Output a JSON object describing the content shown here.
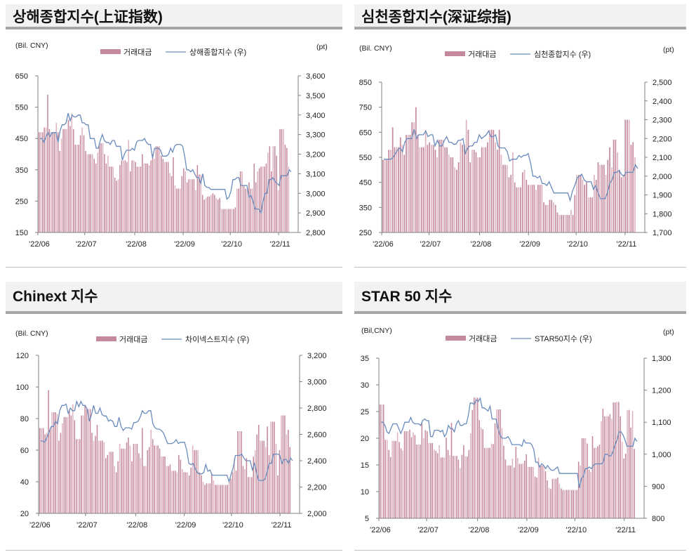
{
  "panels": [
    {
      "title": "상해종합지수(上证指数)"
    },
    {
      "title": "심천종합지수(深证综指)"
    },
    {
      "title": "Chinext 지수"
    },
    {
      "title": "STAR 50 지수"
    }
  ],
  "colors": {
    "bar": "#c4899b",
    "bar_light": "#dfb3c0",
    "line": "#6a8bbd",
    "axis": "#808080"
  },
  "chart_data": [
    {
      "type": "bar+line",
      "left_unit": "(Bil. CNY)",
      "right_unit": "(pt)",
      "legend": {
        "bar": "거래대금",
        "line": "상해종합지수 (우)"
      },
      "legend_placement": "top-center",
      "x_ticks": [
        "'22/06",
        "'22/07",
        "'22/08",
        "'22/09",
        "'22/10",
        "'22/11"
      ],
      "ylim_left": [
        150,
        650
      ],
      "left_ticks": [
        "650",
        "550",
        "450",
        "350",
        "250",
        "150"
      ],
      "ylim_right": [
        2800,
        3600
      ],
      "right_ticks": [
        "3,600",
        "3,500",
        "3,400",
        "3,300",
        "3,200",
        "3,100",
        "3,000",
        "2,900",
        "2,800"
      ],
      "bars": [
        470,
        470,
        470,
        485,
        485,
        590,
        480,
        470,
        470,
        470,
        500,
        470,
        410,
        450,
        480,
        480,
        480,
        510,
        490,
        530,
        480,
        430,
        430,
        430,
        460,
        485,
        460,
        410,
        400,
        400,
        400,
        400,
        385,
        370,
        405,
        435,
        435,
        435,
        400,
        370,
        395,
        360,
        360,
        360,
        325,
        315,
        320,
        365,
        380,
        380,
        380,
        375,
        445,
        345,
        380,
        380,
        375,
        360,
        360,
        360,
        400,
        370,
        370,
        370,
        365,
        380,
        400,
        385,
        425,
        425,
        425,
        395,
        385,
        375,
        375,
        375,
        340,
        330,
        390,
        300,
        290,
        290,
        290,
        330,
        355,
        345,
        310,
        320,
        320,
        320,
        320,
        285,
        365,
        335,
        335,
        270,
        255,
        260,
        265,
        265,
        270,
        275,
        270,
        260,
        255,
        260,
        225,
        225,
        225,
        225,
        225,
        225,
        225,
        225,
        230,
        290,
        290,
        345,
        345,
        300,
        290,
        290,
        310,
        290,
        290,
        370,
        310,
        345,
        355,
        360,
        360,
        360,
        370,
        405,
        425,
        345,
        425,
        425,
        395,
        285,
        480,
        480,
        480,
        430,
        420,
        360
      ],
      "line": [
        3280,
        3280,
        3260,
        3290,
        3310,
        3290,
        3310,
        3310,
        3310,
        3260,
        3320,
        3350,
        3350,
        3360,
        3410,
        3370,
        3400,
        3390,
        3390,
        3400,
        3400,
        3360,
        3360,
        3350,
        3350,
        3280,
        3280,
        3280,
        3230,
        3230,
        3270,
        3300,
        3270,
        3260,
        3260,
        3250,
        3270,
        3270,
        3240,
        3240,
        3240,
        3170,
        3200,
        3220,
        3220,
        3220,
        3230,
        3220,
        3260,
        3270,
        3270,
        3270,
        3280,
        3260,
        3250,
        3250,
        3180,
        3230,
        3230,
        3230,
        3220,
        3190,
        3190,
        3190,
        3200,
        3230,
        3210,
        3240,
        3250,
        3250,
        3250,
        3240,
        3190,
        3120,
        3120,
        3110,
        3120,
        3100,
        3080,
        3080,
        3050,
        3100,
        3040,
        3030,
        3030,
        3020,
        3020,
        3020,
        3020,
        3020,
        3020,
        3020,
        3020,
        2970,
        2980,
        3010,
        3070,
        3070,
        3080,
        3080,
        3040,
        3040,
        3040,
        3040,
        2980,
        2990,
        2960,
        2920,
        2920,
        2920,
        2900,
        2960,
        3000,
        3000,
        3070,
        3070,
        3080,
        3060,
        3050,
        3040,
        3090,
        3090,
        3090,
        3090,
        3120,
        3110
      ]
    },
    {
      "type": "bar+line",
      "left_unit": "(Bil. CNY)",
      "right_unit": "(pt)",
      "legend": {
        "bar": "거래대금",
        "line": "심천종합지수 (우)"
      },
      "legend_placement": "top-center",
      "x_ticks": [
        "'22/06",
        "'22/07",
        "'22/08",
        "'22/09",
        "'22/10",
        "'22/11"
      ],
      "ylim_left": [
        250,
        850
      ],
      "left_ticks": [
        "850",
        "750",
        "650",
        "550",
        "450",
        "350",
        "250"
      ],
      "ylim_right": [
        1700,
        2500
      ],
      "right_ticks": [
        "2,500",
        "2,400",
        "2,300",
        "2,200",
        "2,100",
        "2,000",
        "1,900",
        "1,800",
        "1,700"
      ],
      "bars": [
        540,
        540,
        540,
        580,
        580,
        670,
        590,
        590,
        590,
        630,
        600,
        560,
        640,
        640,
        640,
        690,
        690,
        750,
        640,
        590,
        590,
        590,
        660,
        600,
        610,
        600,
        600,
        580,
        550,
        620,
        620,
        620,
        590,
        590,
        560,
        550,
        550,
        510,
        500,
        530,
        610,
        600,
        600,
        700,
        660,
        530,
        580,
        580,
        570,
        550,
        550,
        590,
        590,
        590,
        610,
        660,
        660,
        660,
        610,
        580,
        660,
        560,
        520,
        520,
        520,
        470,
        480,
        570,
        450,
        430,
        430,
        430,
        490,
        500,
        460,
        440,
        440,
        440,
        440,
        420,
        440,
        440,
        440,
        370,
        360,
        360,
        380,
        380,
        370,
        360,
        330,
        320,
        320,
        320,
        320,
        320,
        320,
        340,
        320,
        400,
        480,
        480,
        480,
        460,
        440,
        450,
        390,
        390,
        390,
        480,
        460,
        530,
        520,
        520,
        520,
        480,
        540,
        590,
        510,
        620,
        620,
        570,
        500,
        470,
        480,
        700,
        700,
        700,
        600,
        610,
        550
      ],
      "line": [
        2090,
        2090,
        2090,
        2090,
        2100,
        2120,
        2140,
        2150,
        2130,
        2180,
        2200,
        2200,
        2200,
        2250,
        2200,
        2220,
        2220,
        2220,
        2240,
        2210,
        2220,
        2220,
        2160,
        2190,
        2160,
        2160,
        2190,
        2210,
        2180,
        2180,
        2170,
        2170,
        2190,
        2190,
        2200,
        2120,
        2150,
        2160,
        2160,
        2180,
        2180,
        2220,
        2200,
        2210,
        2220,
        2240,
        2210,
        2210,
        2220,
        2160,
        2150,
        2150,
        2150,
        2130,
        2080,
        2090,
        2090,
        2090,
        2110,
        2100,
        2110,
        2110,
        2120,
        2070,
        2000,
        2000,
        1990,
        2000,
        1960,
        1960,
        1950,
        1970,
        1940,
        1910,
        1910,
        1910,
        1910,
        1910,
        1910,
        1910,
        1870,
        1920,
        1950,
        1990,
        2000,
        2010,
        1980,
        1970,
        1970,
        1970,
        1930,
        1950,
        1910,
        1880,
        1880,
        1880,
        1910,
        1960,
        1980,
        2020,
        2020,
        2030,
        2010,
        2000,
        2020,
        2020,
        2020,
        2020,
        2060,
        2040
      ]
    },
    {
      "type": "bar+line",
      "left_unit": "(Bil. CNY)",
      "right_unit": "",
      "legend": {
        "bar": "거래대금",
        "line": "차이넥스트지수 (우)"
      },
      "legend_placement": "top-center",
      "x_ticks": [
        "'22/06",
        "'22/07",
        "'22/08",
        "'22/09",
        "'22/10",
        "'22/11"
      ],
      "ylim_left": [
        20,
        120
      ],
      "left_ticks": [
        "120",
        "100",
        "80",
        "60",
        "40",
        "20"
      ],
      "ylim_right": [
        2000,
        3200
      ],
      "right_ticks": [
        "3,200",
        "3,000",
        "2,800",
        "2,600",
        "2,400",
        "2,200",
        "2,000"
      ],
      "bars": [
        74,
        74,
        74,
        70,
        71,
        98,
        74,
        84,
        84,
        84,
        83,
        66,
        71,
        77,
        81,
        81,
        81,
        85,
        82,
        89,
        79,
        67,
        67,
        67,
        82,
        82,
        88,
        86,
        86,
        86,
        71,
        66,
        69,
        76,
        66,
        66,
        66,
        65,
        55,
        57,
        59,
        59,
        59,
        50,
        46,
        53,
        64,
        61,
        61,
        61,
        65,
        68,
        63,
        53,
        64,
        64,
        64,
        58,
        55,
        74,
        50,
        50,
        60,
        62,
        73,
        67,
        63,
        63,
        63,
        61,
        56,
        56,
        56,
        50,
        50,
        51,
        47,
        47,
        47,
        46,
        57,
        54,
        48,
        46,
        46,
        46,
        44,
        49,
        63,
        60,
        60,
        60,
        46,
        44,
        40,
        38,
        39,
        39,
        39,
        45,
        41,
        38,
        38,
        38,
        38,
        38,
        38,
        38,
        38,
        40,
        42,
        46,
        55,
        47,
        72,
        72,
        72,
        50,
        48,
        55,
        43,
        43,
        43,
        56,
        60,
        70,
        76,
        66,
        66,
        66,
        62,
        75,
        57,
        78,
        78,
        78,
        64,
        44,
        60,
        82,
        82,
        82,
        70,
        73,
        62
      ],
      "line": [
        2550,
        2550,
        2540,
        2580,
        2620,
        2660,
        2660,
        2700,
        2680,
        2780,
        2820,
        2820,
        2830,
        2760,
        2800,
        2780,
        2780,
        2850,
        2810,
        2850,
        2820,
        2820,
        2790,
        2700,
        2750,
        2820,
        2760,
        2760,
        2800,
        2750,
        2740,
        2740,
        2700,
        2710,
        2700,
        2660,
        2660,
        2730,
        2660,
        2630,
        2650,
        2650,
        2650,
        2640,
        2690,
        2690,
        2700,
        2730,
        2780,
        2760,
        2760,
        2780,
        2780,
        2680,
        2650,
        2640,
        2640,
        2630,
        2610,
        2570,
        2530,
        2530,
        2530,
        2540,
        2560,
        2530,
        2540,
        2540,
        2540,
        2480,
        2380,
        2370,
        2380,
        2340,
        2310,
        2300,
        2300,
        2310,
        2370,
        2320,
        2330,
        2290,
        2290,
        2290,
        2290,
        2290,
        2290,
        2290,
        2290,
        2240,
        2300,
        2350,
        2440,
        2440,
        2440,
        2450,
        2420,
        2400,
        2400,
        2400,
        2330,
        2380,
        2310,
        2250,
        2250,
        2250,
        2260,
        2320,
        2380,
        2380,
        2450,
        2450,
        2450,
        2440,
        2380,
        2410,
        2410,
        2380,
        2420,
        2400
      ]
    },
    {
      "type": "bar+line",
      "left_unit": "(Bil,CNY)",
      "right_unit": "(pt)",
      "legend": {
        "bar": "거래대금",
        "line": "STAR50지수 (우)"
      },
      "legend_placement": "top-center",
      "x_ticks": [
        "'22/06",
        "'22/07",
        "'22/08",
        "'22/09",
        "'22/10",
        "'22/11"
      ],
      "ylim_left": [
        5,
        35
      ],
      "left_ticks": [
        "35",
        "30",
        "25",
        "20",
        "15",
        "10",
        "5"
      ],
      "ylim_right": [
        800,
        1300
      ],
      "right_ticks": [
        "1,300",
        "1,200",
        "1,100",
        "1,000",
        "900",
        "800"
      ],
      "bars": [
        26.3,
        26.3,
        26.3,
        19.7,
        19.7,
        17.8,
        16.5,
        19.5,
        19.5,
        19.5,
        21.1,
        19.3,
        18.1,
        17.7,
        21.3,
        21.3,
        21.3,
        21.6,
        20.2,
        21.1,
        20.6,
        18.8,
        18.8,
        18.8,
        22.9,
        20.0,
        21.5,
        21.3,
        19.1,
        19.1,
        19.1,
        17.9,
        17.6,
        17.2,
        18.7,
        16.4,
        16.4,
        16.4,
        20.1,
        17.8,
        16.8,
        22.9,
        16.7,
        16.7,
        16.7,
        16.0,
        14.4,
        16.9,
        18.7,
        16.6,
        16.6,
        17.8,
        20.9,
        25.3,
        27.6,
        27.6,
        27.6,
        23.4,
        22.0,
        21.7,
        18.2,
        18.2,
        18.2,
        18.2,
        19.0,
        18.9,
        22.8,
        25.4,
        25.4,
        25.4,
        21.9,
        18.6,
        16.0,
        14.9,
        14.9,
        14.9,
        16.2,
        14.5,
        18.4,
        16.3,
        15.2,
        15.2,
        15.3,
        15.8,
        17.0,
        14.6,
        14.6,
        14.6,
        14.6,
        12.8,
        12.6,
        16.4,
        14.9,
        14.9,
        14.9,
        13.8,
        12.1,
        10.7,
        10.5,
        12.4,
        12.4,
        12.4,
        12.6,
        11.5,
        10.6,
        10.3,
        10.3,
        10.3,
        10.3,
        10.3,
        10.3,
        10.3,
        10.3,
        10.3,
        15.6,
        14.9,
        20.0,
        20.0,
        20.0,
        19.0,
        14.1,
        13.7,
        20.4,
        18.2,
        18.2,
        18.5,
        18.8,
        23.2,
        25.5,
        24.1,
        24.1,
        24.1,
        24.5,
        23.6,
        26.7,
        26.7,
        26.8,
        26.8,
        24.1,
        19.3,
        16.2,
        17.1,
        25.3,
        25.3,
        22.0,
        25.1,
        18.0
      ],
      "line": [
        1100,
        1100,
        1090,
        1070,
        1065,
        1080,
        1095,
        1095,
        1095,
        1080,
        1065,
        1080,
        1100,
        1100,
        1100,
        1115,
        1100,
        1095,
        1095,
        1095,
        1090,
        1105,
        1110,
        1105,
        1105,
        1055,
        1055,
        1075,
        1075,
        1075,
        1070,
        1075,
        1055,
        1065,
        1090,
        1080,
        1080,
        1070,
        1095,
        1105,
        1090,
        1090,
        1095,
        1095,
        1120,
        1160,
        1160,
        1155,
        1170,
        1165,
        1175,
        1145,
        1145,
        1140,
        1135,
        1150,
        1110,
        1110,
        1110,
        1080,
        1060,
        1050,
        1050,
        1050,
        1055,
        1045,
        1030,
        1030,
        1030,
        1030,
        1030,
        1025,
        1045,
        1035,
        1035,
        1035,
        1030,
        1015,
        975,
        975,
        960,
        970,
        965,
        955,
        965,
        955,
        950,
        950,
        955,
        960,
        940,
        940,
        940,
        940,
        940,
        940,
        940,
        940,
        940,
        940,
        895,
        925,
        930,
        955,
        955,
        960,
        955,
        965,
        970,
        970,
        970,
        970,
        975,
        1000,
        1000,
        995,
        995,
        1010,
        1030,
        1045,
        1070,
        1070,
        1060,
        1045,
        1025,
        1025,
        1025,
        1025,
        1050,
        1040
      ]
    }
  ]
}
